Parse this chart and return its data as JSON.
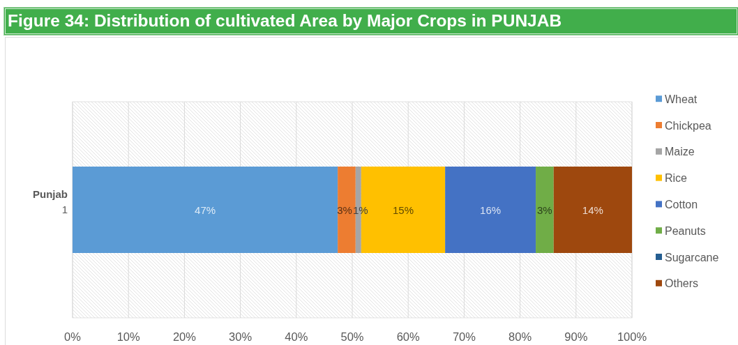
{
  "chart_data": {
    "type": "bar",
    "orientation": "horizontal",
    "stacked": true,
    "title": "Figure 34: Distribution of cultivated Area by Major Crops in PUNJAB",
    "ylabel": "Punjab",
    "categories": [
      "1"
    ],
    "series": [
      {
        "name": "Wheat",
        "color": "#5b9bd5",
        "values": [
          47.4
        ],
        "value_labels": [
          "47%"
        ]
      },
      {
        "name": "Chickpea",
        "color": "#ed7d31",
        "values": [
          3.2
        ],
        "value_labels": [
          "3%"
        ]
      },
      {
        "name": "Maize",
        "color": "#a5a5a5",
        "values": [
          1.0
        ],
        "value_labels": [
          "1%"
        ]
      },
      {
        "name": "Rice",
        "color": "#ffc000",
        "values": [
          15.0
        ],
        "value_labels": [
          "15%"
        ]
      },
      {
        "name": "Cotton",
        "color": "#4472c4",
        "values": [
          16.2
        ],
        "value_labels": [
          "16%"
        ]
      },
      {
        "name": "Peanuts",
        "color": "#70ad47",
        "values": [
          3.2
        ],
        "value_labels": [
          "3%"
        ]
      },
      {
        "name": "Sugarcane",
        "color": "#255e91",
        "values": [
          null
        ],
        "value_labels": [
          null
        ]
      },
      {
        "name": "Others",
        "color": "#9e480e",
        "values": [
          14.0
        ],
        "value_labels": [
          "14%"
        ]
      }
    ],
    "xlim": [
      0,
      100
    ],
    "xticks": [
      {
        "value": 0,
        "label": "0%"
      },
      {
        "value": 10,
        "label": "10%"
      },
      {
        "value": 20,
        "label": "20%"
      },
      {
        "value": 30,
        "label": "30%"
      },
      {
        "value": 40,
        "label": "40%"
      },
      {
        "value": 50,
        "label": "50%"
      },
      {
        "value": 60,
        "label": "60%"
      },
      {
        "value": 70,
        "label": "70%"
      },
      {
        "value": 80,
        "label": "80%"
      },
      {
        "value": 90,
        "label": "90%"
      },
      {
        "value": 100,
        "label": "100%"
      }
    ],
    "grid": "x",
    "legend": "right"
  }
}
